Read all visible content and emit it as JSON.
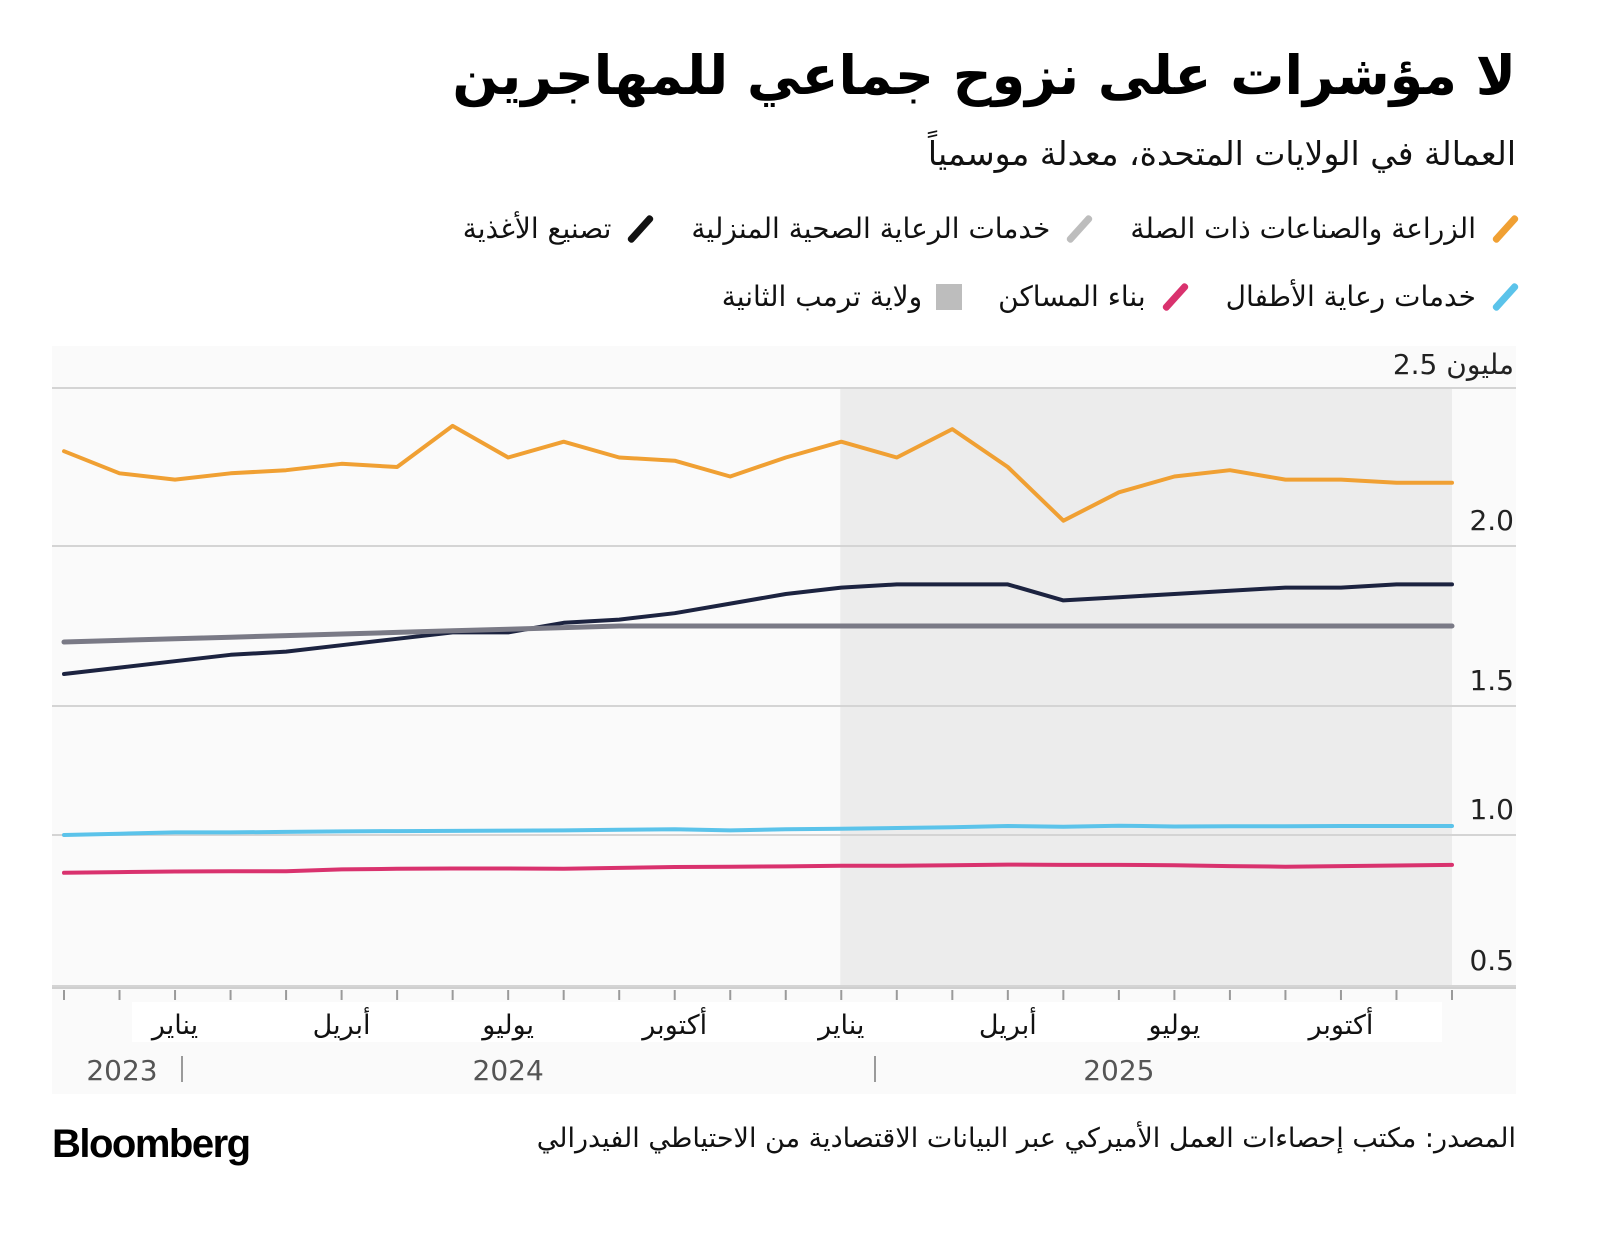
{
  "header": {
    "title": "لا مؤشرات على نزوح جماعي للمهاجرين",
    "subtitle": "العمالة في الولايات المتحدة، معدلة موسمياً"
  },
  "legend": {
    "row1": [
      {
        "label": "الزراعة والصناعات ذات الصلة",
        "color": "#f0a033",
        "shape": "slash"
      },
      {
        "label": "خدمات الرعاية الصحية المنزلية",
        "color": "#bdbdbd",
        "shape": "slash"
      },
      {
        "label": "تصنيع الأغذية",
        "color": "#111111",
        "shape": "slash"
      }
    ],
    "row2": [
      {
        "label": "خدمات رعاية الأطفال",
        "color": "#5bc3ea",
        "shape": "slash"
      },
      {
        "label": "بناء المساكن",
        "color": "#d9326e",
        "shape": "slash"
      },
      {
        "label": "ولاية ترمب الثانية",
        "color": "#bdbdbd",
        "shape": "square"
      }
    ]
  },
  "footer": {
    "source": "المصدر: مكتب إحصاءات العمل الأميركي عبر البيانات الاقتصادية من الاحتياطي الفيدرالي",
    "brand": "Bloomberg"
  },
  "chart_data": {
    "type": "line",
    "title": "لا مؤشرات على نزوح جماعي للمهاجرين",
    "subtitle": "العمالة في الولايات المتحدة، معدلة موسمياً",
    "xlabel": "",
    "ylabel": "مليون",
    "y_unit_label": "2.5 مليون",
    "ylim": [
      0.5,
      2.5
    ],
    "yticks": [
      2.5,
      2.0,
      1.5,
      1.0,
      0.5
    ],
    "ytick_labels": [
      "2.5 مليون",
      "2.0",
      "1.5",
      "1.0",
      "0.5"
    ],
    "grid": true,
    "legend_position": "top-right",
    "x": [
      "2023-11",
      "2023-12",
      "2024-01",
      "2024-02",
      "2024-03",
      "2024-04",
      "2024-05",
      "2024-06",
      "2024-07",
      "2024-08",
      "2024-09",
      "2024-10",
      "2024-11",
      "2024-12",
      "2025-01",
      "2025-02",
      "2025-03",
      "2025-04",
      "2025-05",
      "2025-06",
      "2025-07",
      "2025-08",
      "2025-09",
      "2025-10",
      "2025-11",
      "2025-12"
    ],
    "xtick_labels": [
      {
        "x": "2024-01",
        "label": "يناير"
      },
      {
        "x": "2024-04",
        "label": "أبريل"
      },
      {
        "x": "2024-07",
        "label": "يوليو"
      },
      {
        "x": "2024-10",
        "label": "أكتوبر"
      },
      {
        "x": "2025-01",
        "label": "يناير"
      },
      {
        "x": "2025-04",
        "label": "أبريل"
      },
      {
        "x": "2025-07",
        "label": "يوليو"
      },
      {
        "x": "2025-10",
        "label": "أكتوبر"
      }
    ],
    "year_labels": [
      {
        "label": "2023",
        "x": "2023-11"
      },
      {
        "label": "2024",
        "x": "2024-07"
      },
      {
        "label": "2025",
        "x": "2025-06"
      }
    ],
    "shaded_region": {
      "label": "ولاية ترمب الثانية",
      "from": "2025-01",
      "to": "2025-12",
      "color": "#ececec"
    },
    "series": [
      {
        "name": "الزراعة والصناعات ذات الصلة",
        "color": "#f0a033",
        "values": [
          2.3,
          2.23,
          2.21,
          2.23,
          2.24,
          2.26,
          2.25,
          2.38,
          2.28,
          2.33,
          2.28,
          2.27,
          2.22,
          2.28,
          2.33,
          2.28,
          2.37,
          2.25,
          2.08,
          2.17,
          2.22,
          2.24,
          2.21,
          2.21,
          2.2,
          2.2
        ]
      },
      {
        "name": "تصنيع الأغذية",
        "color": "#1c2340",
        "values": [
          1.6,
          1.62,
          1.64,
          1.66,
          1.67,
          1.69,
          1.71,
          1.73,
          1.73,
          1.76,
          1.77,
          1.79,
          1.82,
          1.85,
          1.87,
          1.88,
          1.88,
          1.88,
          1.83,
          1.84,
          1.85,
          1.86,
          1.87,
          1.87,
          1.88,
          1.88
        ]
      },
      {
        "name": "خدمات الرعاية الصحية المنزلية",
        "color": "#7a7a86",
        "values": [
          1.7,
          1.705,
          1.71,
          1.715,
          1.72,
          1.725,
          1.73,
          1.735,
          1.74,
          1.745,
          1.75,
          1.75,
          1.75,
          1.75,
          1.75,
          1.75,
          1.75,
          1.75,
          1.75,
          1.75,
          1.75,
          1.75,
          1.75,
          1.75,
          1.75,
          1.75
        ]
      },
      {
        "name": "خدمات رعاية الأطفال",
        "color": "#5bc3ea",
        "values": [
          1.0,
          1.005,
          1.01,
          1.01,
          1.012,
          1.014,
          1.015,
          1.016,
          1.017,
          1.018,
          1.02,
          1.022,
          1.018,
          1.022,
          1.024,
          1.027,
          1.03,
          1.035,
          1.032,
          1.036,
          1.033,
          1.034,
          1.034,
          1.035,
          1.035,
          1.035
        ]
      },
      {
        "name": "بناء المساكن",
        "color": "#d9326e",
        "values": [
          0.875,
          0.877,
          0.879,
          0.88,
          0.88,
          0.886,
          0.888,
          0.889,
          0.889,
          0.888,
          0.891,
          0.894,
          0.895,
          0.896,
          0.898,
          0.898,
          0.9,
          0.902,
          0.901,
          0.901,
          0.9,
          0.897,
          0.895,
          0.897,
          0.899,
          0.901
        ]
      }
    ]
  }
}
